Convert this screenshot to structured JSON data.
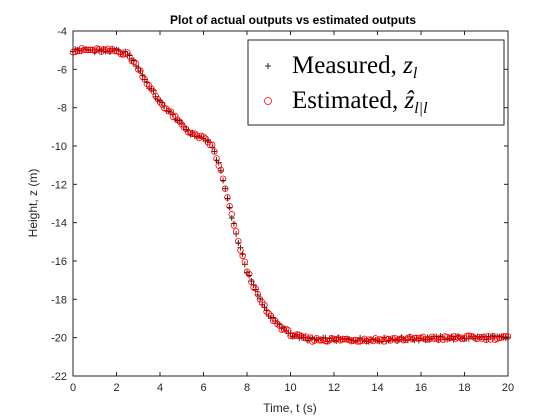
{
  "chart_data": {
    "type": "scatter",
    "title": "Plot of actual outputs vs estimated outputs",
    "xlabel": "Time, t (s)",
    "ylabel": "Height, z (m)",
    "xlim": [
      0,
      20
    ],
    "ylim": [
      -22,
      -4
    ],
    "xticks": [
      0,
      2,
      4,
      6,
      8,
      10,
      12,
      14,
      16,
      18,
      20
    ],
    "yticks": [
      -22,
      -20,
      -18,
      -16,
      -14,
      -12,
      -10,
      -8,
      -6,
      -4
    ],
    "grid": false,
    "legend_position": "top-right",
    "sample_interval": 0.1,
    "series": [
      {
        "name": "Measured, z_l",
        "legend_label": "Measured, ",
        "legend_symbol": "z",
        "legend_sub": "l",
        "marker": "plus",
        "color": "#000000",
        "x_start": 0,
        "x_end": 20,
        "anchor_x": [
          0,
          1,
          2,
          2.5,
          3,
          3.5,
          4,
          4.5,
          5,
          5.5,
          6,
          6.4,
          6.8,
          7.2,
          7.6,
          8,
          8.5,
          9,
          9.5,
          10,
          10.5,
          11,
          12,
          14,
          16,
          18,
          20
        ],
        "anchor_y": [
          -5.0,
          -5.0,
          -5.05,
          -5.2,
          -5.9,
          -6.9,
          -7.7,
          -8.3,
          -8.9,
          -9.4,
          -9.6,
          -10.0,
          -11.3,
          -13.2,
          -15.0,
          -16.5,
          -17.8,
          -18.8,
          -19.4,
          -19.8,
          -20.0,
          -20.1,
          -20.1,
          -20.1,
          -20.05,
          -20.0,
          -20.0
        ]
      },
      {
        "name": "Estimated, ẑ_l|l",
        "legend_label": "Estimated, ",
        "legend_symbol": "ẑ",
        "legend_sub": "l|l",
        "marker": "circle",
        "color": "#ff0000",
        "x_start": 0,
        "x_end": 20,
        "anchor_x": [
          0,
          1,
          2,
          2.5,
          3,
          3.5,
          4,
          4.5,
          5,
          5.5,
          6,
          6.4,
          6.8,
          7.2,
          7.6,
          8,
          8.5,
          9,
          9.5,
          10,
          10.5,
          11,
          12,
          14,
          16,
          18,
          20
        ],
        "anchor_y": [
          -5.0,
          -5.0,
          -5.05,
          -5.2,
          -5.9,
          -6.9,
          -7.7,
          -8.3,
          -8.9,
          -9.4,
          -9.6,
          -10.0,
          -11.3,
          -13.2,
          -15.0,
          -16.5,
          -17.8,
          -18.8,
          -19.4,
          -19.8,
          -20.0,
          -20.1,
          -20.1,
          -20.1,
          -20.05,
          -20.0,
          -20.0
        ]
      }
    ]
  }
}
